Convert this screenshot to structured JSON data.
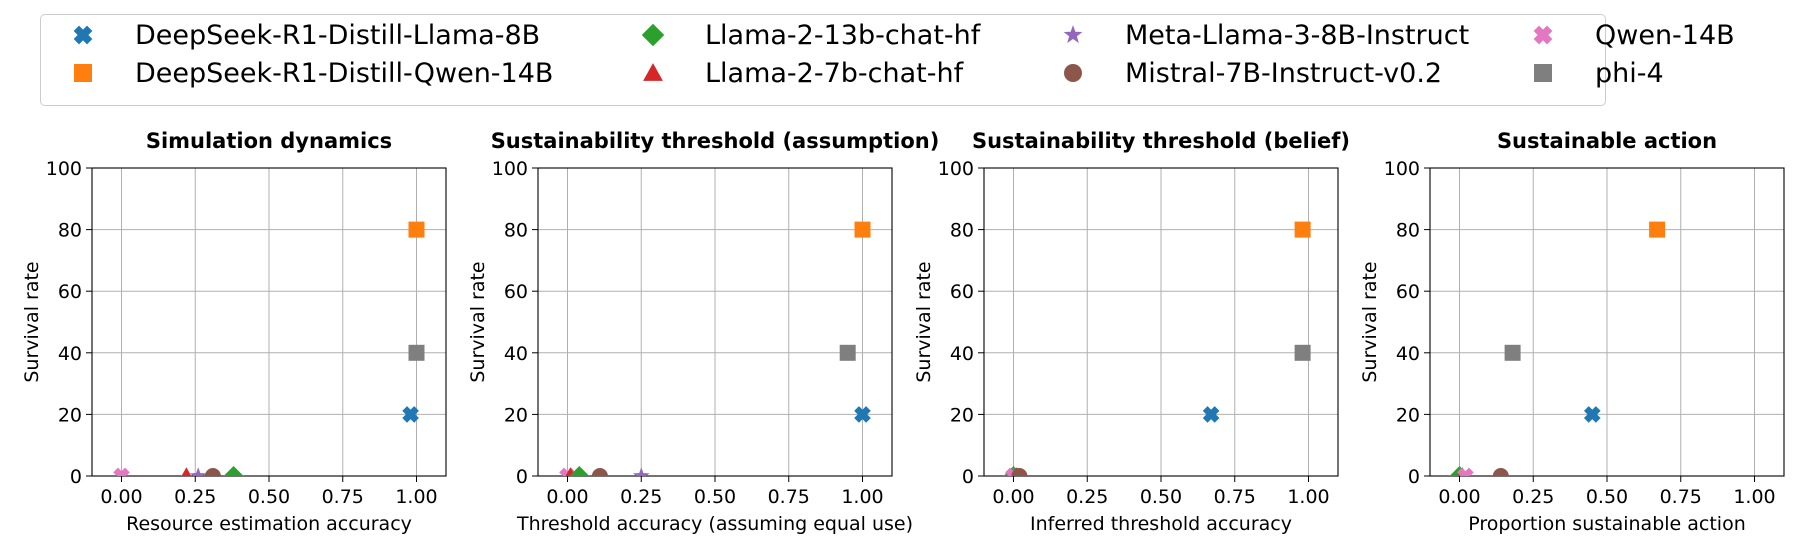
{
  "legend": [
    {
      "name": "DeepSeek-R1-Distill-Llama-8B",
      "color": "#1f77b4",
      "marker": "x-filled"
    },
    {
      "name": "DeepSeek-R1-Distill-Qwen-14B",
      "color": "#ff7f0e",
      "marker": "square"
    },
    {
      "name": "Llama-2-13b-chat-hf",
      "color": "#2ca02c",
      "marker": "diamond"
    },
    {
      "name": "Llama-2-7b-chat-hf",
      "color": "#d62728",
      "marker": "triangle"
    },
    {
      "name": "Meta-Llama-3-8B-Instruct",
      "color": "#9467bd",
      "marker": "star"
    },
    {
      "name": "Mistral-7B-Instruct-v0.2",
      "color": "#8c564b",
      "marker": "circle"
    },
    {
      "name": "Qwen-14B",
      "color": "#e377c2",
      "marker": "x-filled"
    },
    {
      "name": "phi-4",
      "color": "#7f7f7f",
      "marker": "square"
    }
  ],
  "chart_data": [
    {
      "type": "scatter",
      "title": "Simulation dynamics",
      "xlabel": "Resource estimation accuracy",
      "ylabel": "Survival rate",
      "xlim": [
        -0.1,
        1.1
      ],
      "ylim": [
        0,
        100
      ],
      "xticks": [
        "0.00",
        "0.25",
        "0.50",
        "0.75",
        "1.00"
      ],
      "yticks": [
        "0",
        "20",
        "40",
        "60",
        "80",
        "100"
      ],
      "grid": true,
      "points": [
        {
          "series": "Qwen-14B",
          "x": 0.0,
          "y": 0
        },
        {
          "series": "Llama-2-7b-chat-hf",
          "x": 0.22,
          "y": 0
        },
        {
          "series": "Meta-Llama-3-8B-Instruct",
          "x": 0.26,
          "y": 0
        },
        {
          "series": "Mistral-7B-Instruct-v0.2",
          "x": 0.31,
          "y": 0
        },
        {
          "series": "Llama-2-13b-chat-hf",
          "x": 0.38,
          "y": 0
        },
        {
          "series": "DeepSeek-R1-Distill-Llama-8B",
          "x": 0.98,
          "y": 20
        },
        {
          "series": "phi-4",
          "x": 1.0,
          "y": 40
        },
        {
          "series": "DeepSeek-R1-Distill-Qwen-14B",
          "x": 1.0,
          "y": 80
        }
      ]
    },
    {
      "type": "scatter",
      "title": "Sustainability threshold (assumption)",
      "xlabel": "Threshold accuracy (assuming equal use)",
      "ylabel": "Survival rate",
      "xlim": [
        -0.1,
        1.1
      ],
      "ylim": [
        0,
        100
      ],
      "xticks": [
        "0.00",
        "0.25",
        "0.50",
        "0.75",
        "1.00"
      ],
      "yticks": [
        "0",
        "20",
        "40",
        "60",
        "80",
        "100"
      ],
      "grid": true,
      "points": [
        {
          "series": "Qwen-14B",
          "x": 0.0,
          "y": 0
        },
        {
          "series": "Llama-2-7b-chat-hf",
          "x": 0.01,
          "y": 0
        },
        {
          "series": "Llama-2-13b-chat-hf",
          "x": 0.04,
          "y": 0
        },
        {
          "series": "Mistral-7B-Instruct-v0.2",
          "x": 0.11,
          "y": 0
        },
        {
          "series": "Meta-Llama-3-8B-Instruct",
          "x": 0.25,
          "y": 0
        },
        {
          "series": "phi-4",
          "x": 0.95,
          "y": 40
        },
        {
          "series": "DeepSeek-R1-Distill-Llama-8B",
          "x": 1.0,
          "y": 20
        },
        {
          "series": "DeepSeek-R1-Distill-Qwen-14B",
          "x": 1.0,
          "y": 80
        }
      ]
    },
    {
      "type": "scatter",
      "title": "Sustainability threshold (belief)",
      "xlabel": "Inferred threshold accuracy",
      "ylabel": "Survival rate",
      "xlim": [
        -0.1,
        1.1
      ],
      "ylim": [
        0,
        100
      ],
      "xticks": [
        "0.00",
        "0.25",
        "0.50",
        "0.75",
        "1.00"
      ],
      "yticks": [
        "0",
        "20",
        "40",
        "60",
        "80",
        "100"
      ],
      "grid": true,
      "points": [
        {
          "series": "Llama-2-13b-chat-hf",
          "x": 0.0,
          "y": 0
        },
        {
          "series": "Meta-Llama-3-8B-Instruct",
          "x": 0.0,
          "y": 0
        },
        {
          "series": "Qwen-14B",
          "x": 0.0,
          "y": 0
        },
        {
          "series": "Llama-2-7b-chat-hf",
          "x": 0.01,
          "y": 0
        },
        {
          "series": "Mistral-7B-Instruct-v0.2",
          "x": 0.02,
          "y": 0
        },
        {
          "series": "DeepSeek-R1-Distill-Llama-8B",
          "x": 0.67,
          "y": 20
        },
        {
          "series": "phi-4",
          "x": 0.98,
          "y": 40
        },
        {
          "series": "DeepSeek-R1-Distill-Qwen-14B",
          "x": 0.98,
          "y": 80
        }
      ]
    },
    {
      "type": "scatter",
      "title": "Sustainable action",
      "xlabel": "Proportion sustainable action",
      "ylabel": "Survival rate",
      "xlim": [
        -0.1,
        1.1
      ],
      "ylim": [
        0,
        100
      ],
      "xticks": [
        "0.00",
        "0.25",
        "0.50",
        "0.75",
        "1.00"
      ],
      "yticks": [
        "0",
        "20",
        "40",
        "60",
        "80",
        "100"
      ],
      "grid": true,
      "points": [
        {
          "series": "Llama-2-13b-chat-hf",
          "x": 0.0,
          "y": 0
        },
        {
          "series": "Llama-2-7b-chat-hf",
          "x": 0.01,
          "y": 0
        },
        {
          "series": "Qwen-14B",
          "x": 0.02,
          "y": 0
        },
        {
          "series": "Mistral-7B-Instruct-v0.2",
          "x": 0.14,
          "y": 0
        },
        {
          "series": "phi-4",
          "x": 0.18,
          "y": 40
        },
        {
          "series": "DeepSeek-R1-Distill-Llama-8B",
          "x": 0.45,
          "y": 20
        },
        {
          "series": "DeepSeek-R1-Distill-Qwen-14B",
          "x": 0.67,
          "y": 80
        }
      ]
    }
  ]
}
